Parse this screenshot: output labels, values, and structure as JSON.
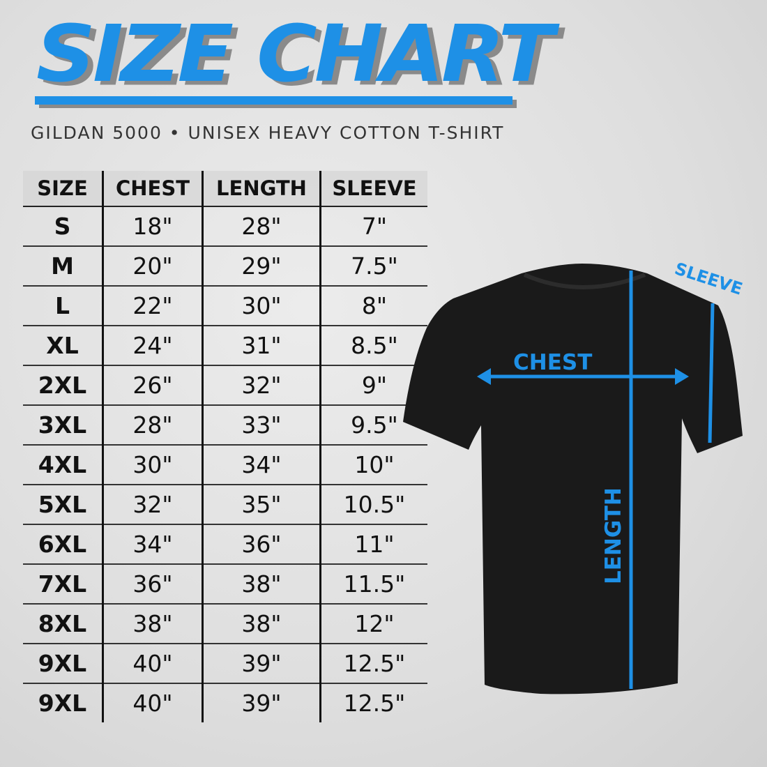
{
  "header": {
    "title": "SIZE CHART",
    "subtitle": "GILDAN 5000 • UNISEX HEAVY COTTON T-SHIRT"
  },
  "colors": {
    "accent": "#1e90e6",
    "shirt": "#1a1a1a"
  },
  "table": {
    "columns": [
      "SIZE",
      "CHEST",
      "LENGTH",
      "SLEEVE"
    ],
    "rows": [
      [
        "S",
        "18\"",
        "28\"",
        "7\""
      ],
      [
        "M",
        "20\"",
        "29\"",
        "7.5\""
      ],
      [
        "L",
        "22\"",
        "30\"",
        "8\""
      ],
      [
        "XL",
        "24\"",
        "31\"",
        "8.5\""
      ],
      [
        "2XL",
        "26\"",
        "32\"",
        "9\""
      ],
      [
        "3XL",
        "28\"",
        "33\"",
        "9.5\""
      ],
      [
        "4XL",
        "30\"",
        "34\"",
        "10\""
      ],
      [
        "5XL",
        "32\"",
        "35\"",
        "10.5\""
      ],
      [
        "6XL",
        "34\"",
        "36\"",
        "11\""
      ],
      [
        "7XL",
        "36\"",
        "38\"",
        "11.5\""
      ],
      [
        "8XL",
        "38\"",
        "38\"",
        "12\""
      ],
      [
        "9XL",
        "40\"",
        "39\"",
        "12.5\""
      ],
      [
        "9XL",
        "40\"",
        "39\"",
        "12.5\""
      ]
    ]
  },
  "diagram": {
    "chest_label": "CHEST",
    "length_label": "LENGTH",
    "sleeve_label": "SLEEVE"
  }
}
